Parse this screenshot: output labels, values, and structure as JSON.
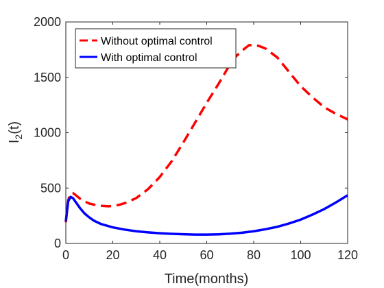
{
  "chart_data": {
    "type": "line",
    "title": "",
    "xlabel": "Time(months)",
    "ylabel_main": "I",
    "ylabel_sub": "2",
    "ylabel_tail": "(t)",
    "xlim": [
      0,
      120
    ],
    "ylim": [
      0,
      2000
    ],
    "xticks": [
      0,
      20,
      40,
      60,
      80,
      100,
      120
    ],
    "yticks": [
      0,
      500,
      1000,
      1500,
      2000
    ],
    "grid": false,
    "legend_position": "top-left",
    "series": [
      {
        "name": "Without optimal control",
        "color": "#ff0000",
        "style": "dashed",
        "x": [
          0,
          1,
          2,
          3,
          4,
          6,
          8,
          10,
          12,
          15,
          18,
          20,
          23,
          26,
          30,
          35,
          40,
          45,
          50,
          55,
          60,
          65,
          70,
          72,
          75,
          78,
          80,
          82,
          85,
          90,
          95,
          100,
          105,
          110,
          115,
          120
        ],
        "y": [
          190,
          390,
          450,
          455,
          440,
          405,
          380,
          360,
          350,
          340,
          335,
          338,
          350,
          370,
          410,
          490,
          600,
          740,
          910,
          1090,
          1270,
          1440,
          1620,
          1680,
          1740,
          1790,
          1790,
          1785,
          1760,
          1680,
          1550,
          1420,
          1320,
          1230,
          1170,
          1120
        ]
      },
      {
        "name": "With optimal control",
        "color": "#0000ff",
        "style": "solid",
        "x": [
          0,
          1,
          2,
          3,
          4,
          6,
          8,
          10,
          12,
          15,
          20,
          25,
          30,
          35,
          40,
          45,
          50,
          55,
          60,
          65,
          70,
          75,
          80,
          85,
          90,
          95,
          100,
          105,
          110,
          115,
          120
        ],
        "y": [
          200,
          380,
          420,
          410,
          380,
          320,
          270,
          235,
          205,
          175,
          145,
          125,
          110,
          100,
          92,
          87,
          83,
          80,
          80,
          82,
          88,
          97,
          110,
          128,
          150,
          180,
          215,
          260,
          310,
          370,
          435
        ]
      }
    ]
  }
}
